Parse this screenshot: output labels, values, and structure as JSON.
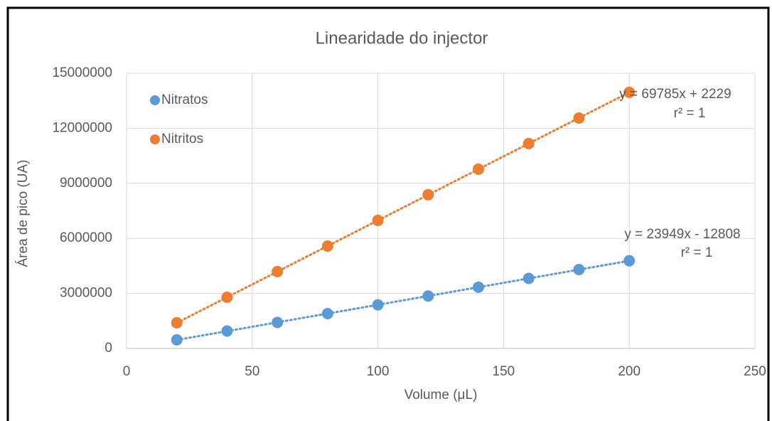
{
  "chart_data": {
    "type": "scatter",
    "title": "Linearidade do injector",
    "xlabel": "Volume (μL)",
    "ylabel": "Área de pico (UA)",
    "xlim": [
      0,
      250
    ],
    "xticks": [
      0,
      50,
      100,
      150,
      200,
      250
    ],
    "ylim": [
      0,
      15000000
    ],
    "yticks": [
      0,
      3000000,
      6000000,
      9000000,
      12000000,
      15000000
    ],
    "grid": true,
    "legend": "upper left",
    "x": [
      20,
      40,
      60,
      80,
      100,
      120,
      140,
      160,
      180,
      200
    ],
    "series": [
      {
        "name": "Nitratos",
        "color": "#5b9bd5",
        "values": [
          470000,
          950000,
          1420000,
          1900000,
          2380000,
          2860000,
          3340000,
          3820000,
          4300000,
          4780000
        ],
        "trendline": {
          "slope": 23949,
          "intercept": -12808,
          "label": "y = 23949x - 12808",
          "r2_label": "r² = 1"
        }
      },
      {
        "name": "Nitritos",
        "color": "#ed7d31",
        "values": [
          1400000,
          2790000,
          4190000,
          5580000,
          6980000,
          8380000,
          9770000,
          11170000,
          12560000,
          13960000
        ],
        "trendline": {
          "slope": 69785,
          "intercept": 2229,
          "label": "y = 69785x + 2229",
          "r2_label": "r² = 1"
        }
      }
    ]
  }
}
